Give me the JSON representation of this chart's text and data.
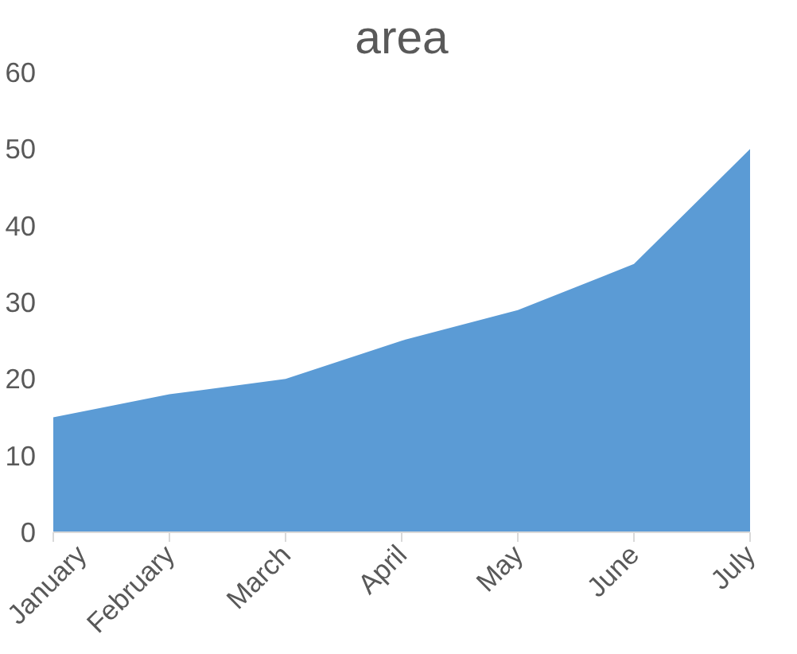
{
  "chart_data": {
    "type": "area",
    "title": "area",
    "categories": [
      "January",
      "February",
      "March",
      "April",
      "May",
      "June",
      "July"
    ],
    "values": [
      15,
      18,
      20,
      25,
      29,
      35,
      50
    ],
    "color": "#5b9bd5",
    "ylim": [
      0,
      60
    ],
    "yticks": [
      0,
      10,
      20,
      30,
      40,
      50,
      60
    ],
    "grid": false
  }
}
